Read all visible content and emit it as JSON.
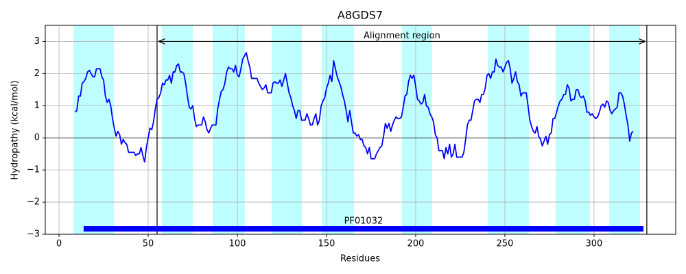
{
  "chart_data": {
    "type": "line",
    "title": "A8GDS7",
    "xlabel": "Residues",
    "ylabel": "Hydropathy (kcal/mol)",
    "xlim": [
      -7.7,
      345.8
    ],
    "ylim": [
      -3,
      3.5
    ],
    "xticks": [
      0,
      50,
      100,
      150,
      200,
      250,
      300
    ],
    "yticks": [
      {
        "value": -3,
        "label": "−3"
      },
      {
        "value": -2,
        "label": "−2"
      },
      {
        "value": -1,
        "label": "−1"
      },
      0,
      1,
      2,
      3
    ],
    "grid": true,
    "hline": 0,
    "color": "#0000ff",
    "region_color": "#c0ffff",
    "regions": [
      [
        8.1,
        30.8
      ],
      [
        57.7,
        75
      ],
      [
        86.2,
        104.2
      ],
      [
        119.2,
        136.2
      ],
      [
        147.3,
        165.4
      ],
      [
        192.3,
        209.2
      ],
      [
        240.4,
        263.5
      ],
      [
        278.5,
        297.7
      ],
      [
        308.5,
        325.8
      ]
    ],
    "vlines": [
      55,
      329.6
    ],
    "annotation": {
      "text": "Alignment region",
      "x_start": 55,
      "x_end": 329.6,
      "y": 3
    },
    "domain": {
      "label": "PF01032",
      "start": 13.8,
      "end": 327.7,
      "y": -2.83,
      "color": "#0000ff"
    },
    "x": [
      9,
      10,
      11,
      12,
      13,
      14,
      15,
      16,
      17,
      18,
      19,
      20,
      21,
      22,
      23,
      24,
      25,
      26,
      27,
      28,
      29,
      30,
      31,
      32,
      33,
      34,
      35,
      36,
      37,
      38,
      39,
      40,
      41,
      42,
      43,
      44,
      45,
      46,
      47,
      48,
      49,
      50,
      51,
      52,
      53,
      54,
      55,
      56,
      57,
      58,
      59,
      60,
      61,
      62,
      63,
      64,
      65,
      66,
      67,
      68,
      69,
      70,
      71,
      72,
      73,
      74,
      75,
      76,
      77,
      78,
      79,
      80,
      81,
      82,
      83,
      84,
      85,
      86,
      87,
      88,
      89,
      90,
      91,
      92,
      93,
      94,
      95,
      96,
      97,
      98,
      99,
      100,
      101,
      102,
      103,
      104,
      105,
      106,
      107,
      108,
      109,
      110,
      111,
      112,
      113,
      114,
      115,
      116,
      117,
      118,
      119,
      120,
      121,
      122,
      123,
      124,
      125,
      126,
      127,
      128,
      129,
      130,
      131,
      132,
      133,
      134,
      135,
      136,
      137,
      138,
      139,
      140,
      141,
      142,
      143,
      144,
      145,
      146,
      147,
      148,
      149,
      150,
      151,
      152,
      153,
      154,
      155,
      156,
      157,
      158,
      159,
      160,
      161,
      162,
      163,
      164,
      165,
      166,
      167,
      168,
      169,
      170,
      171,
      172,
      173,
      174,
      175,
      176,
      177,
      178,
      179,
      180,
      181,
      182,
      183,
      184,
      185,
      186,
      187,
      188,
      189,
      190,
      191,
      192,
      193,
      194,
      195,
      196,
      197,
      198,
      199,
      200,
      201,
      202,
      203,
      204,
      205,
      206,
      207,
      208,
      209,
      210,
      211,
      212,
      213,
      214,
      215,
      216,
      217,
      218,
      219,
      220,
      221,
      222,
      223,
      224,
      225,
      226,
      227,
      228,
      229,
      230,
      231,
      232,
      233,
      234,
      235,
      236,
      237,
      238,
      239,
      240,
      241,
      242,
      243,
      244,
      245,
      246,
      247,
      248,
      249,
      250,
      251,
      252,
      253,
      254,
      255,
      256,
      257,
      258,
      259,
      260,
      261,
      262,
      263,
      264,
      265,
      266,
      267,
      268,
      269,
      270,
      271,
      272,
      273,
      274,
      275,
      276,
      277,
      278,
      279,
      280,
      281,
      282,
      283,
      284,
      285,
      286,
      287,
      288,
      289,
      290,
      291,
      292,
      293,
      294,
      295,
      296,
      297,
      298,
      299,
      300,
      301,
      302,
      303,
      304,
      305,
      306,
      307,
      308,
      309,
      310,
      311,
      312,
      313,
      314,
      315,
      316,
      317,
      318,
      319,
      320,
      321,
      322
    ],
    "values": [
      0.8,
      0.85,
      1.3,
      1.3,
      1.7,
      1.75,
      1.85,
      2.05,
      2.1,
      2.0,
      1.9,
      1.9,
      2.15,
      2.15,
      2.15,
      1.9,
      1.8,
      1.3,
      1.1,
      1.2,
      1.0,
      0.6,
      0.3,
      0.05,
      0.2,
      0.1,
      -0.2,
      -0.05,
      -0.15,
      -0.2,
      -0.45,
      -0.45,
      -0.45,
      -0.45,
      -0.55,
      -0.5,
      -0.5,
      -0.3,
      -0.55,
      -0.75,
      -0.3,
      0.0,
      0.3,
      0.25,
      0.5,
      0.9,
      1.2,
      1.25,
      1.4,
      1.7,
      1.65,
      1.8,
      1.8,
      1.95,
      1.7,
      2.05,
      2.05,
      2.25,
      2.3,
      2.05,
      2.05,
      2.0,
      1.7,
      1.3,
      0.95,
      0.9,
      1.0,
      0.6,
      0.35,
      0.4,
      0.4,
      0.4,
      0.65,
      0.5,
      0.25,
      0.15,
      0.3,
      0.4,
      0.4,
      0.4,
      0.9,
      1.2,
      1.45,
      1.5,
      1.7,
      2.05,
      2.2,
      2.15,
      2.15,
      2.05,
      2.25,
      1.95,
      1.9,
      2.15,
      2.45,
      2.55,
      2.65,
      2.4,
      2.2,
      1.85,
      1.85,
      1.85,
      1.85,
      1.7,
      1.6,
      1.5,
      1.55,
      1.65,
      1.4,
      1.4,
      1.4,
      1.7,
      1.75,
      1.7,
      1.7,
      1.8,
      1.6,
      1.8,
      2.0,
      1.7,
      1.4,
      1.25,
      1.0,
      0.85,
      0.6,
      0.85,
      0.85,
      0.55,
      0.55,
      0.55,
      0.75,
      0.6,
      0.4,
      0.4,
      0.6,
      0.75,
      0.4,
      0.55,
      1.0,
      1.15,
      1.25,
      1.55,
      1.7,
      1.95,
      1.75,
      2.4,
      2.15,
      1.9,
      1.75,
      1.6,
      1.35,
      1.15,
      0.85,
      0.5,
      0.85,
      0.5,
      0.15,
      0.15,
      0.05,
      0.1,
      -0.05,
      -0.05,
      -0.25,
      -0.3,
      -0.5,
      -0.3,
      -0.65,
      -0.65,
      -0.65,
      -0.5,
      -0.4,
      -0.3,
      -0.25,
      0.05,
      0.45,
      0.3,
      0.45,
      0.2,
      0.4,
      0.55,
      0.65,
      0.6,
      0.6,
      0.65,
      0.95,
      1.3,
      1.35,
      1.75,
      1.95,
      1.85,
      1.95,
      1.6,
      1.2,
      1.15,
      1.05,
      1.1,
      1.35,
      1.0,
      0.95,
      0.75,
      0.65,
      0.5,
      0.1,
      0.0,
      -0.4,
      -0.4,
      -0.4,
      -0.65,
      -0.3,
      -0.5,
      -0.2,
      -0.6,
      -0.5,
      -0.2,
      -0.6,
      -0.6,
      -0.6,
      -0.6,
      -0.45,
      -0.05,
      0.4,
      0.55,
      0.55,
      0.85,
      1.15,
      1.2,
      1.2,
      1.1,
      1.35,
      1.35,
      1.55,
      1.95,
      2.0,
      1.85,
      2.05,
      2.05,
      2.45,
      2.25,
      2.2,
      2.2,
      2.05,
      2.2,
      2.35,
      2.4,
      2.15,
      1.7,
      1.85,
      2.05,
      1.75,
      1.65,
      1.3,
      1.4,
      1.4,
      1.4,
      1.0,
      0.55,
      0.35,
      0.2,
      0.15,
      0.35,
      0.05,
      -0.05,
      -0.25,
      -0.1,
      0.05,
      -0.2,
      0.1,
      0.15,
      0.6,
      0.6,
      0.8,
      1.0,
      1.15,
      1.2,
      1.35,
      1.35,
      1.65,
      1.55,
      1.15,
      1.2,
      1.2,
      1.5,
      1.5,
      1.3,
      1.25,
      1.3,
      1.15,
      0.8,
      0.8,
      0.7,
      0.75,
      0.65,
      0.6,
      0.65,
      0.8,
      1.0,
      1.05,
      0.95,
      1.15,
      1.1,
      0.85,
      0.75,
      0.85,
      0.9,
      0.95,
      1.4,
      1.4,
      1.3,
      1.05,
      0.7,
      0.4,
      -0.1,
      0.15,
      0.2
    ]
  }
}
